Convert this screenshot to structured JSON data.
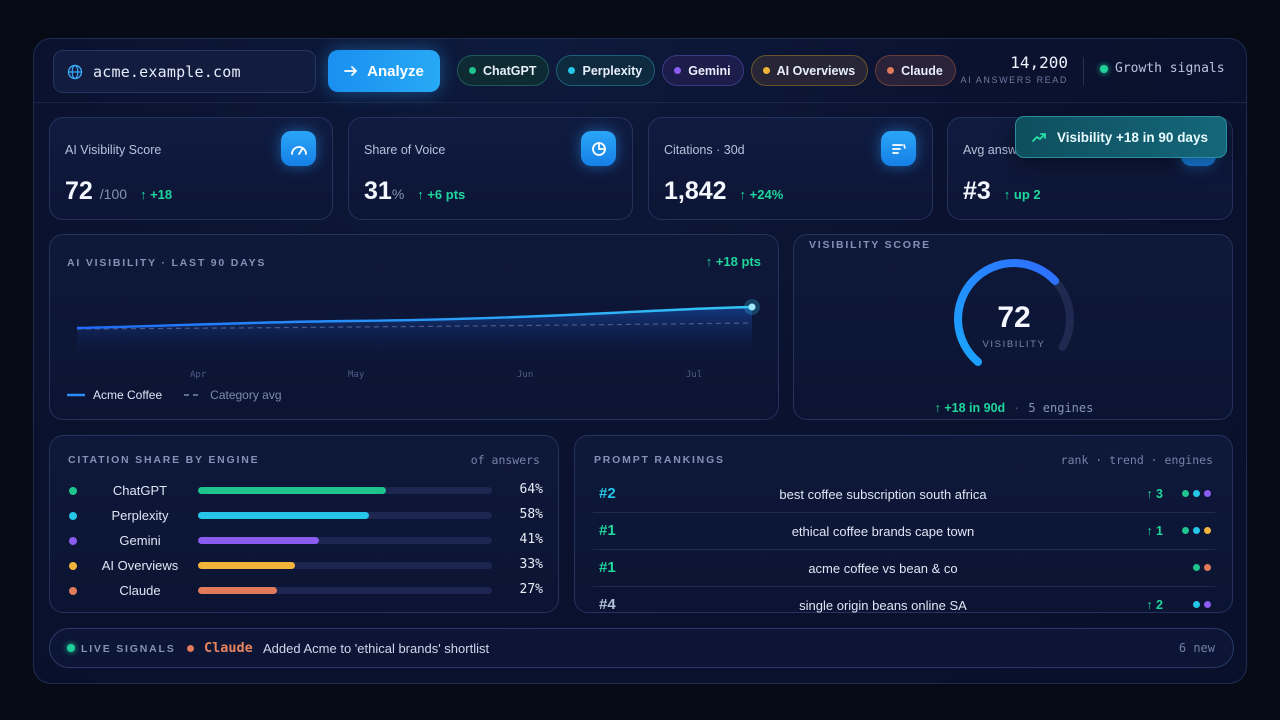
{
  "search": {
    "value": "acme.example.com"
  },
  "toolbar": {
    "analyze_label": "Analyze"
  },
  "engines": [
    {
      "label": "ChatGPT",
      "color": "#1fc38e"
    },
    {
      "label": "Perplexity",
      "color": "#25c6e8"
    },
    {
      "label": "Gemini",
      "color": "#8b5cf0"
    },
    {
      "label": "AI Overviews",
      "color": "#f0b43a"
    },
    {
      "label": "Claude",
      "color": "#e07a5a"
    }
  ],
  "header": {
    "answers_count": "14,200",
    "answers_label": "AI ANSWERS READ",
    "growth_label": "Growth signals"
  },
  "kpis": [
    {
      "title": "AI Visibility Score",
      "value": "72",
      "unit": "/100",
      "delta": "+18",
      "icon": "gauge-icon"
    },
    {
      "title": "Share of Voice",
      "value": "31",
      "unit": "%",
      "delta": "+6 pts",
      "icon": "pie-icon"
    },
    {
      "title": "Citations · 30d",
      "value": "1,842",
      "unit": "",
      "delta": "+24%",
      "icon": "quote-icon"
    },
    {
      "title": "Avg answer",
      "value": "#3",
      "unit": "",
      "delta": "up 2",
      "icon": "rank-icon"
    }
  ],
  "toast": {
    "text": "Visibility +18 in 90 days"
  },
  "trend_panel": {
    "title": "AI VISIBILITY · LAST 90 DAYS",
    "delta": "+18 pts",
    "x_labels": [
      "Apr",
      "May",
      "Jun",
      "Jul"
    ],
    "legend": [
      "Acme Coffee",
      "Category avg"
    ]
  },
  "gauge": {
    "title": "VISIBILITY SCORE",
    "value": "72",
    "label": "VISIBILITY",
    "fraction": 0.72,
    "delta": "+18 in 90d",
    "engines": "5 engines"
  },
  "citation_share": {
    "title": "CITATION SHARE BY ENGINE",
    "subtitle": "of answers",
    "rows": [
      {
        "name": "ChatGPT",
        "pct": "64%",
        "value": 64,
        "color": "#1fc38e"
      },
      {
        "name": "Perplexity",
        "pct": "58%",
        "value": 58,
        "color": "#25c6e8"
      },
      {
        "name": "Gemini",
        "pct": "41%",
        "value": 41,
        "color": "#8b5cf0"
      },
      {
        "name": "AI Overviews",
        "pct": "33%",
        "value": 33,
        "color": "#f0b43a"
      },
      {
        "name": "Claude",
        "pct": "27%",
        "value": 27,
        "color": "#e07a5a"
      }
    ]
  },
  "rankings": {
    "title": "PROMPT RANKINGS",
    "subtitle": "rank · trend · engines",
    "rows": [
      {
        "rank": "#2",
        "query": "best coffee subscription south africa",
        "trend": "3",
        "engines": [
          "#1fc38e",
          "#25c6e8",
          "#8b5cf0"
        ],
        "rank_color": "#25c6e8"
      },
      {
        "rank": "#1",
        "query": "ethical coffee brands cape town",
        "trend": "1",
        "engines": [
          "#1fc38e",
          "#25c6e8",
          "#f0b43a"
        ],
        "rank_color": "#1fd69c"
      },
      {
        "rank": "#1",
        "query": "acme coffee vs bean & co",
        "trend": "",
        "engines": [
          "#1fc38e",
          "#e07a5a"
        ],
        "rank_color": "#1fd69c"
      },
      {
        "rank": "#4",
        "query": "single origin beans online SA",
        "trend": "2",
        "engines": [
          "#25c6e8",
          "#8b5cf0"
        ],
        "rank_color": "#b6c1dd"
      }
    ]
  },
  "signals": {
    "label": "LIVE SIGNALS",
    "engine": "Claude",
    "message": "Added Acme to 'ethical brands' shortlist",
    "count": "6 new"
  }
}
